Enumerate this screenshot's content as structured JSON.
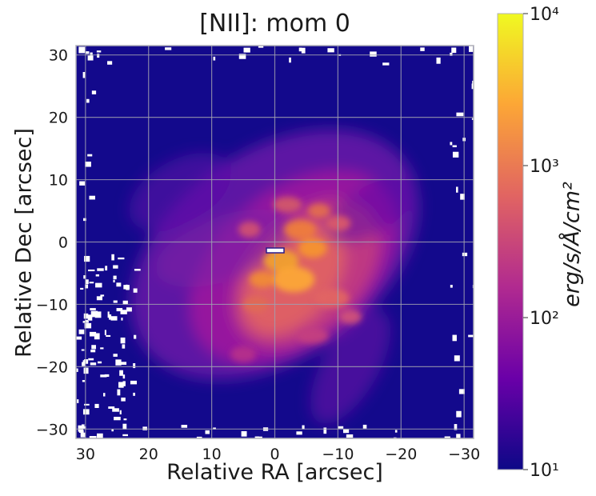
{
  "chart_data": {
    "type": "heatmap",
    "title": "[NII]: mom 0",
    "xlabel": "Relative RA [arcsec]",
    "ylabel": "Relative Dec [arcsec]",
    "xlim": [
      31.5,
      -31.5
    ],
    "ylim": [
      -31.5,
      31.5
    ],
    "xticks": [
      30,
      20,
      10,
      0,
      -10,
      -20,
      -30
    ],
    "xtick_labels": [
      "30",
      "20",
      "10",
      "0",
      "−10",
      "−20",
      "−30"
    ],
    "yticks": [
      30,
      20,
      10,
      0,
      -10,
      -20,
      -30
    ],
    "ytick_labels": [
      "30",
      "20",
      "10",
      "0",
      "−10",
      "−20",
      "−30"
    ],
    "grid": true,
    "colormap": "plasma",
    "colorbar": {
      "label": "erg/s/Å/cm²",
      "scale": "log",
      "range": [
        10,
        10000
      ],
      "ticks": [
        {
          "value": 10,
          "label": "10¹"
        },
        {
          "value": 100,
          "label": "10²"
        },
        {
          "value": 1000,
          "label": "10³"
        },
        {
          "value": 10000,
          "label": "10⁴"
        }
      ]
    },
    "features": {
      "peak_region": {
        "ra": -2,
        "dec": -4,
        "level": "~3000"
      },
      "marker_box": {
        "ra_center": 0,
        "dec_center": -1.5
      }
    }
  },
  "colors": {
    "background_low": "#13098c",
    "cmap_stops": [
      "#0d0887",
      "#6a00a8",
      "#b12a90",
      "#e16462",
      "#fca636",
      "#f0f921"
    ],
    "grid": "#a0a0b0"
  }
}
